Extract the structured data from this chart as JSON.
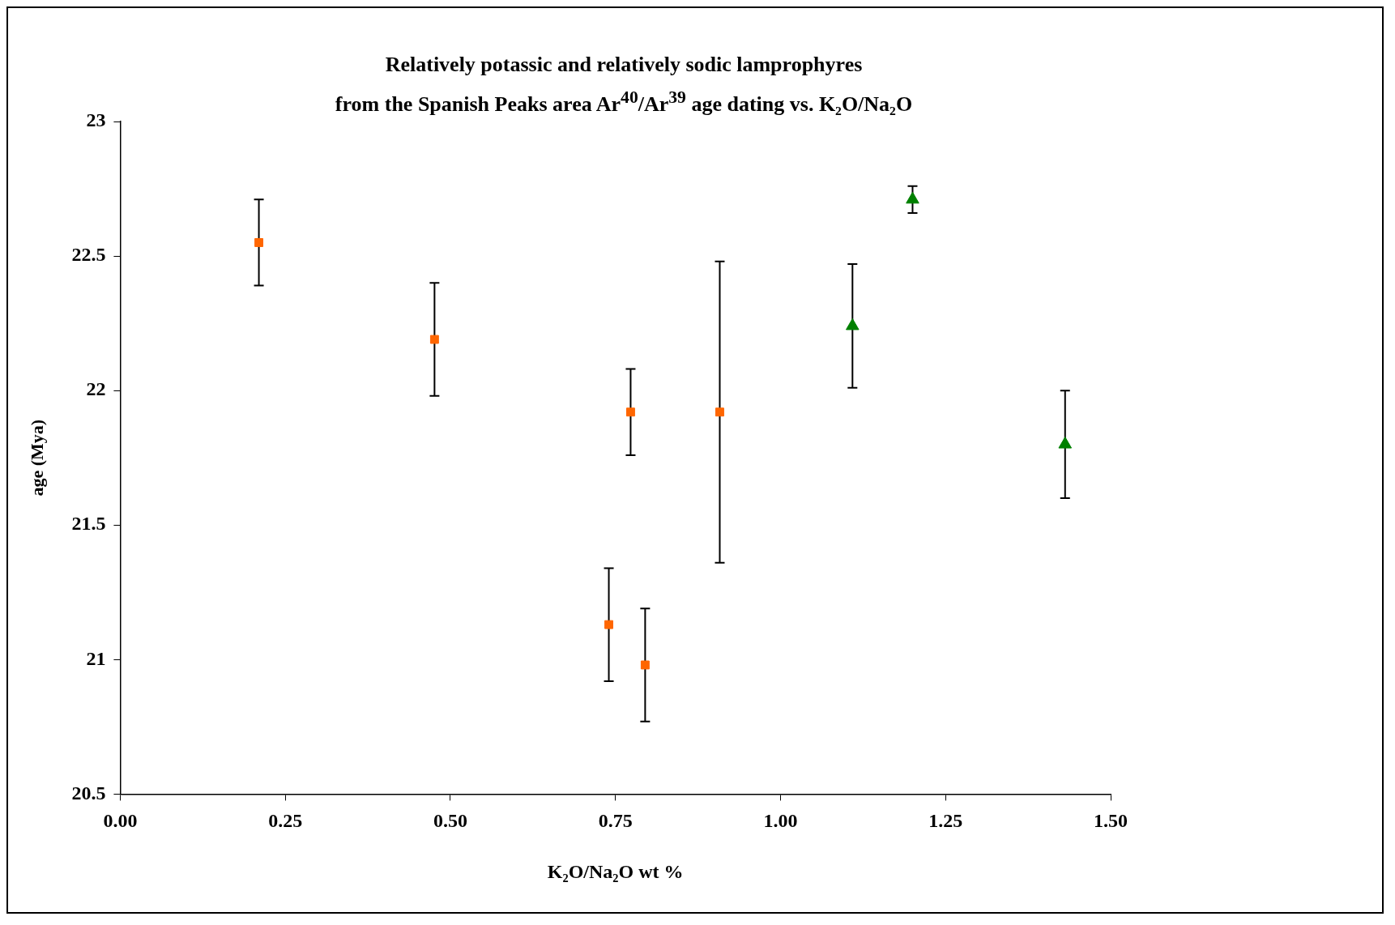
{
  "chart_data": {
    "type": "scatter",
    "title": "Relatively potassic and relatively sodic lamprophyres\nfrom the Spanish Peaks area Ar$^{40}$/Ar$^{39}$ age dating vs. K₂O/Na₂O",
    "xlabel": "K₂O/Na₂O wt %",
    "ylabel": "age (Mya)",
    "xlim": [
      0,
      1.5
    ],
    "xticks": [
      {
        "value": 0,
        "label": "0.00"
      },
      {
        "value": 0.25,
        "label": "0.25"
      },
      {
        "value": 0.5,
        "label": "0.50"
      },
      {
        "value": 0.75,
        "label": "0.75"
      },
      {
        "value": 1,
        "label": "1.00"
      },
      {
        "value": 1.25,
        "label": "1.25"
      },
      {
        "value": 1.5,
        "label": "1.50"
      }
    ],
    "ylim": [
      20.5,
      23
    ],
    "yticks": [
      20.5,
      21,
      21.5,
      22,
      22.5,
      23
    ],
    "grid": false,
    "legend": false,
    "series": [
      {
        "color": "#ff6600",
        "marker": "square",
        "x": [
          0.21,
          0.476,
          0.773,
          0.908,
          0.74,
          0.795
        ],
        "values": [
          22.55,
          22.19,
          21.92,
          21.92,
          21.13,
          20.98
        ],
        "errors": [
          0.16,
          0.21,
          0.16,
          0.56,
          0.21,
          0.21
        ]
      },
      {
        "color": "#008000",
        "marker": "triangle",
        "x": [
          1.109,
          1.2,
          1.431
        ],
        "values": [
          22.24,
          22.71,
          21.8
        ],
        "errors": [
          0.23,
          0.05,
          0.2
        ]
      }
    ]
  }
}
